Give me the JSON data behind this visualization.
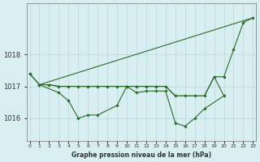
{
  "line1_x": [
    0,
    1,
    3,
    4,
    5,
    6,
    7,
    9,
    10,
    11,
    12,
    13,
    14,
    15,
    16,
    17,
    18,
    20
  ],
  "line1_y": [
    1017.4,
    1017.05,
    1016.8,
    1016.55,
    1016.0,
    1016.1,
    1016.1,
    1016.4,
    1017.0,
    1016.8,
    1016.85,
    1016.85,
    1016.85,
    1015.85,
    1015.75,
    1016.0,
    1016.3,
    1016.7
  ],
  "line2_x": [
    1,
    2,
    3,
    4,
    5,
    6,
    7,
    8,
    9,
    10,
    11,
    12,
    13,
    14,
    15,
    16,
    17,
    18,
    19,
    20
  ],
  "line2_y": [
    1017.05,
    1017.05,
    1017.0,
    1017.0,
    1017.0,
    1017.0,
    1017.0,
    1017.0,
    1017.0,
    1017.0,
    1017.0,
    1017.0,
    1017.0,
    1017.0,
    1016.7,
    1016.7,
    1016.7,
    1016.7,
    1017.3,
    1016.7
  ],
  "line3_x": [
    0,
    1,
    2,
    3,
    4,
    5,
    6,
    7,
    8,
    9,
    10,
    11,
    12,
    13,
    14,
    15,
    16,
    17,
    18,
    19,
    20,
    21,
    22,
    23
  ],
  "line3_y": [
    1017.4,
    1017.05,
    1017.05,
    1017.0,
    1017.0,
    1017.0,
    1017.0,
    1017.0,
    1017.0,
    1017.0,
    1017.0,
    1017.0,
    1017.0,
    1017.0,
    1017.0,
    1016.7,
    1016.7,
    1016.7,
    1016.7,
    1017.3,
    1017.3,
    1018.15,
    1019.0,
    1019.15
  ],
  "line4_x": [
    1,
    23
  ],
  "line4_y": [
    1017.05,
    1019.15
  ],
  "color": "#2d6a2d",
  "bg_color": "#d8eef0",
  "grid_color": "#b8d8dc",
  "title": "Graphe pression niveau de la mer (hPa)",
  "yticks": [
    1016,
    1017,
    1018
  ],
  "ylim": [
    1015.3,
    1019.6
  ],
  "xlim": [
    -0.3,
    23.3
  ]
}
